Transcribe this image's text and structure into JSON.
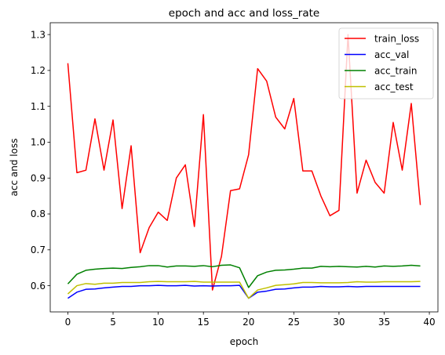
{
  "chart_data": {
    "type": "line",
    "title": "epoch and acc and loss_rate",
    "xlabel": "epoch",
    "ylabel": "acc and loss",
    "xlim": [
      -1.95,
      40.95
    ],
    "ylim": [
      0.527,
      1.333
    ],
    "xticks": [
      0,
      5,
      10,
      15,
      20,
      25,
      30,
      35,
      40
    ],
    "yticks": [
      0.6,
      0.7,
      0.8,
      0.9,
      1.0,
      1.1,
      1.2,
      1.3
    ],
    "ytick_labels": [
      "0.6",
      "0.7",
      "0.8",
      "0.9",
      "1.0",
      "1.1",
      "1.2",
      "1.3"
    ],
    "grid": false,
    "legend_position": "top-right",
    "x": [
      0,
      1,
      2,
      3,
      4,
      5,
      6,
      7,
      8,
      9,
      10,
      11,
      12,
      13,
      14,
      15,
      16,
      17,
      18,
      19,
      20,
      21,
      22,
      23,
      24,
      25,
      26,
      27,
      28,
      29,
      30,
      31,
      32,
      33,
      34,
      35,
      36,
      37,
      38,
      39
    ],
    "series": [
      {
        "name": "train_loss",
        "color": "#ff0000",
        "values": [
          1.22,
          0.915,
          0.922,
          1.065,
          0.922,
          1.062,
          0.815,
          0.99,
          0.692,
          0.762,
          0.805,
          0.782,
          0.9,
          0.937,
          0.765,
          1.077,
          0.588,
          0.682,
          0.865,
          0.87,
          0.965,
          1.205,
          1.17,
          1.07,
          1.037,
          1.122,
          0.92,
          0.92,
          0.85,
          0.795,
          0.81,
          1.3,
          0.858,
          0.95,
          0.888,
          0.858,
          1.055,
          0.922,
          1.108,
          0.825
        ]
      },
      {
        "name": "acc_val",
        "color": "#0000ff",
        "values": [
          0.565,
          0.582,
          0.59,
          0.591,
          0.594,
          0.596,
          0.598,
          0.598,
          0.6,
          0.6,
          0.601,
          0.6,
          0.6,
          0.601,
          0.599,
          0.6,
          0.599,
          0.6,
          0.6,
          0.601,
          0.565,
          0.582,
          0.585,
          0.59,
          0.591,
          0.594,
          0.596,
          0.596,
          0.598,
          0.597,
          0.597,
          0.598,
          0.597,
          0.598,
          0.598,
          0.598,
          0.598,
          0.598,
          0.598,
          0.598
        ]
      },
      {
        "name": "acc_train",
        "color": "#008000",
        "values": [
          0.605,
          0.632,
          0.643,
          0.646,
          0.648,
          0.649,
          0.648,
          0.651,
          0.653,
          0.656,
          0.656,
          0.652,
          0.655,
          0.655,
          0.654,
          0.656,
          0.653,
          0.657,
          0.658,
          0.65,
          0.595,
          0.628,
          0.638,
          0.643,
          0.644,
          0.646,
          0.649,
          0.649,
          0.654,
          0.653,
          0.654,
          0.653,
          0.652,
          0.654,
          0.652,
          0.655,
          0.654,
          0.655,
          0.657,
          0.655
        ]
      },
      {
        "name": "acc_test",
        "color": "#bfbf00",
        "values": [
          0.577,
          0.6,
          0.606,
          0.604,
          0.607,
          0.607,
          0.609,
          0.609,
          0.609,
          0.611,
          0.612,
          0.611,
          0.611,
          0.611,
          0.612,
          0.61,
          0.61,
          0.61,
          0.61,
          0.61,
          0.565,
          0.588,
          0.594,
          0.601,
          0.603,
          0.605,
          0.609,
          0.609,
          0.608,
          0.608,
          0.608,
          0.609,
          0.611,
          0.61,
          0.61,
          0.611,
          0.611,
          0.611,
          0.611,
          0.612
        ]
      }
    ]
  }
}
